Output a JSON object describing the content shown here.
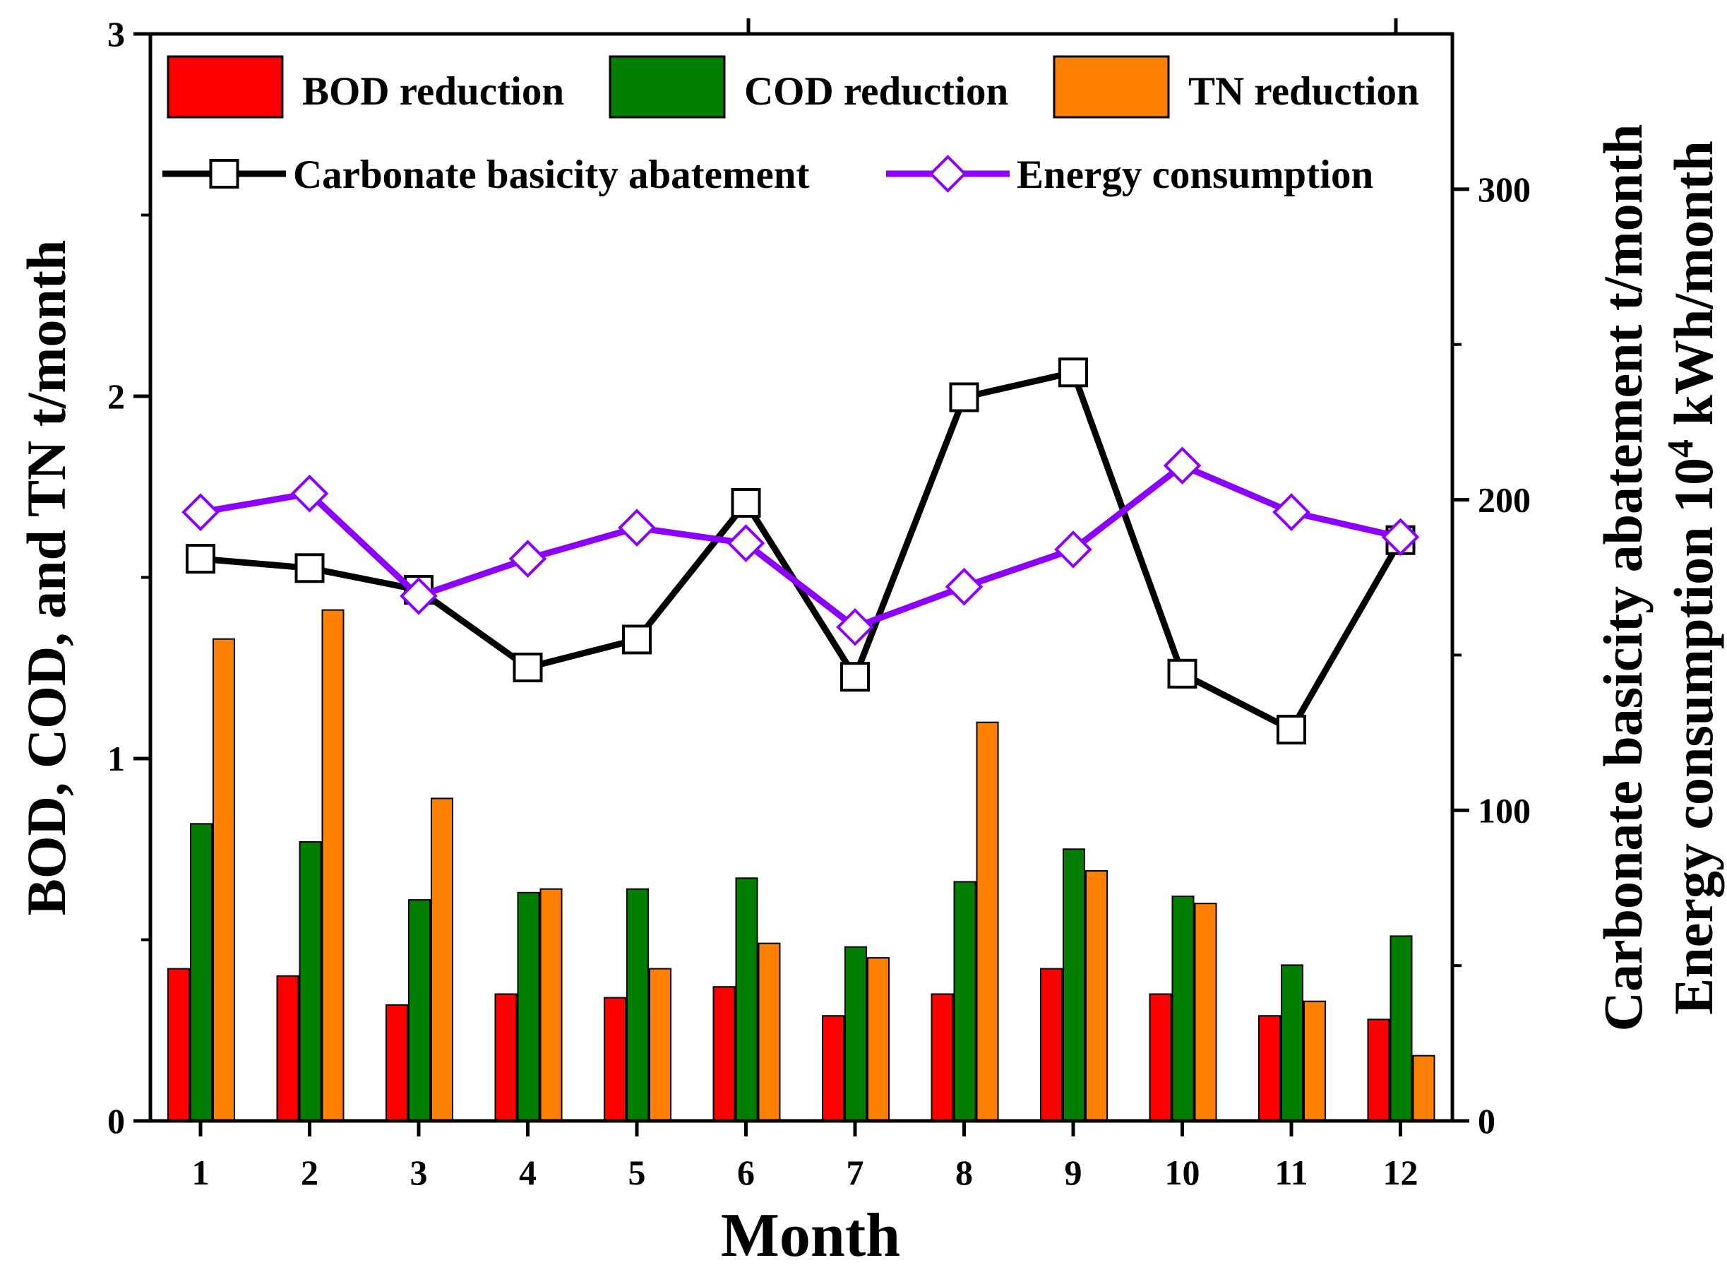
{
  "chart_data": {
    "type": "bar",
    "title": "",
    "xlabel": "Month",
    "ylabel_left": "BOD, COD, and TN  t/month",
    "ylabel_right_line1": "Carbonate basicity abatement  t/month",
    "ylabel_right_line2_prefix": "Energy consumption  10",
    "ylabel_right_line2_sup": "4",
    "ylabel_right_line2_suffix": " kWh/month",
    "categories": [
      "1",
      "2",
      "3",
      "4",
      "5",
      "6",
      "7",
      "8",
      "9",
      "10",
      "11",
      "12"
    ],
    "ylim_left": [
      0,
      3
    ],
    "yticks_left": [
      "0",
      "1",
      "2",
      "3"
    ],
    "ylim_right": [
      0,
      350
    ],
    "yticks_right": [
      "0",
      "100",
      "200",
      "300"
    ],
    "bar_series": [
      {
        "name": "BOD reduction",
        "color": "#ff0000",
        "values": [
          0.42,
          0.4,
          0.32,
          0.35,
          0.34,
          0.37,
          0.29,
          0.35,
          0.42,
          0.35,
          0.29,
          0.28
        ]
      },
      {
        "name": "COD reduction",
        "color": "#007f00",
        "values": [
          0.82,
          0.77,
          0.61,
          0.63,
          0.64,
          0.67,
          0.48,
          0.66,
          0.75,
          0.62,
          0.43,
          0.51
        ]
      },
      {
        "name": "TN reduction",
        "color": "#ff8000",
        "values": [
          1.33,
          1.41,
          0.89,
          0.64,
          0.42,
          0.49,
          0.45,
          1.1,
          0.69,
          0.6,
          0.33,
          0.18
        ]
      }
    ],
    "line_series": [
      {
        "name": "Carbonate basicity abatement",
        "color": "#000000",
        "marker": "square",
        "axis": "right",
        "values": [
          181,
          178,
          171,
          146,
          155,
          199,
          143,
          233,
          241,
          144,
          126,
          187
        ]
      },
      {
        "name": "Energy consumption",
        "color": "#8b00ff",
        "marker": "diamond",
        "axis": "right",
        "values": [
          196,
          202,
          169,
          181,
          191,
          186,
          159,
          172,
          184,
          211,
          196,
          188
        ]
      }
    ],
    "legend_position": "top"
  }
}
